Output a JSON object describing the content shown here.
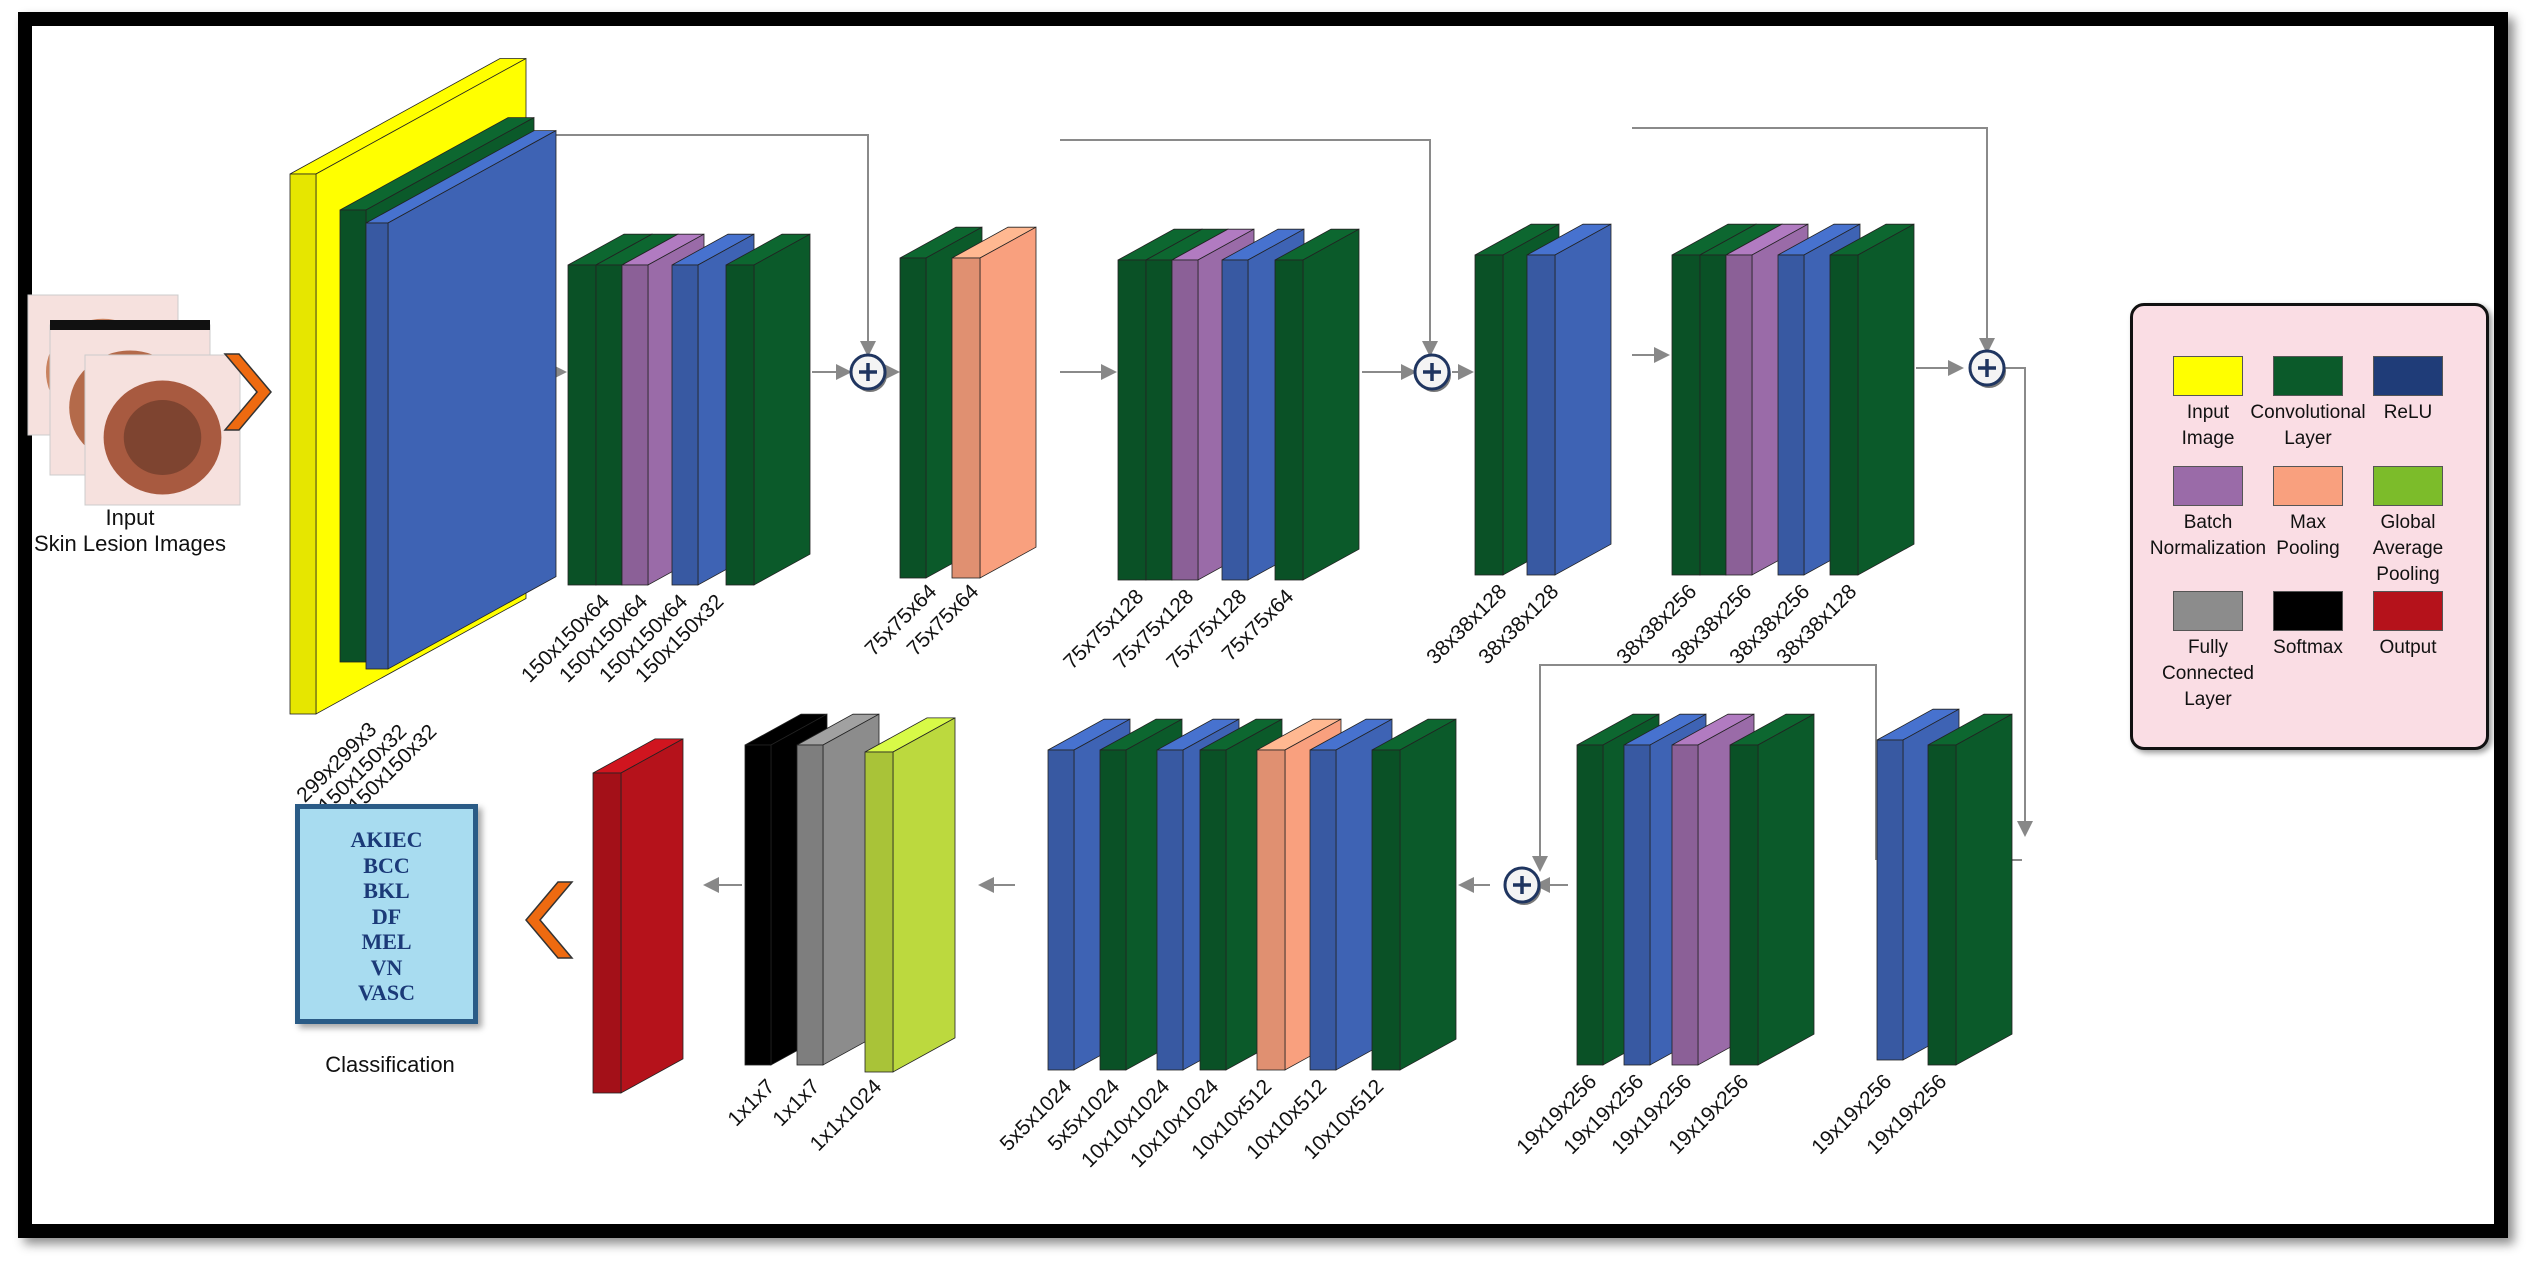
{
  "input": {
    "title_line1": "Input",
    "title_line2": "Skin Lesion Images"
  },
  "row1_labels": [
    "299x299x3",
    "150x150x32",
    "150x150x32",
    "150x150x64",
    "150x150x64",
    "150x150x64",
    "150x150x32",
    "75x75x64",
    "75x75x64",
    "75x75x128",
    "75x75x128",
    "75x75x128",
    "75x75x64",
    "38x38x128",
    "38x38x128",
    "38x38x256",
    "38x38x256",
    "38x38x256",
    "38x38x128"
  ],
  "row2_labels": [
    "1x1x7",
    "1x1x7",
    "1x1x1024",
    "5x5x1024",
    "5x5x1024",
    "10x10x1024",
    "10x10x1024",
    "10x10x512",
    "10x10x512",
    "10x10x512",
    "19x19x256",
    "19x19x256",
    "19x19x256",
    "19x19x256",
    "19x19x256",
    "19x19x256"
  ],
  "classification": {
    "title": "Classification",
    "classes": [
      "AKIEC",
      "BCC",
      "BKL",
      "DF",
      "MEL",
      "VN",
      "VASC"
    ]
  },
  "legend": {
    "items": [
      {
        "line1": "Input",
        "line2": "Image",
        "line3": "",
        "color": "#ffff00"
      },
      {
        "line1": "Convolutional",
        "line2": "Layer",
        "line3": "",
        "color": "#0b5a2a"
      },
      {
        "line1": "ReLU",
        "line2": "",
        "line3": "",
        "color": "#1f3c78"
      },
      {
        "line1": "Batch",
        "line2": "Normalization",
        "line3": "",
        "color": "#9a6ba8"
      },
      {
        "line1": "Max",
        "line2": "Pooling",
        "line3": "",
        "color": "#f9a07e"
      },
      {
        "line1": "Global",
        "line2": "Average",
        "line3": "Pooling",
        "color": "#7cbc2a"
      },
      {
        "line1": "Fully",
        "line2": "Connected",
        "line3": "Layer",
        "color": "#8c8c8c"
      },
      {
        "line1": "Softmax",
        "line2": "",
        "line3": "",
        "color": "#000000"
      },
      {
        "line1": "Output",
        "line2": "",
        "line3": "",
        "color": "#b5121b"
      }
    ]
  },
  "colors": {
    "input": "#ffff00",
    "conv": "#0b5a2a",
    "relu_blue": "#3e63b4",
    "batchnorm": "#9a6ba8",
    "maxpool": "#f9a07e",
    "gap": "#bcd93e",
    "fc": "#8c8c8c",
    "softmax": "#000000",
    "output": "#b5121b",
    "arrow_orange": "#ee6a10"
  }
}
